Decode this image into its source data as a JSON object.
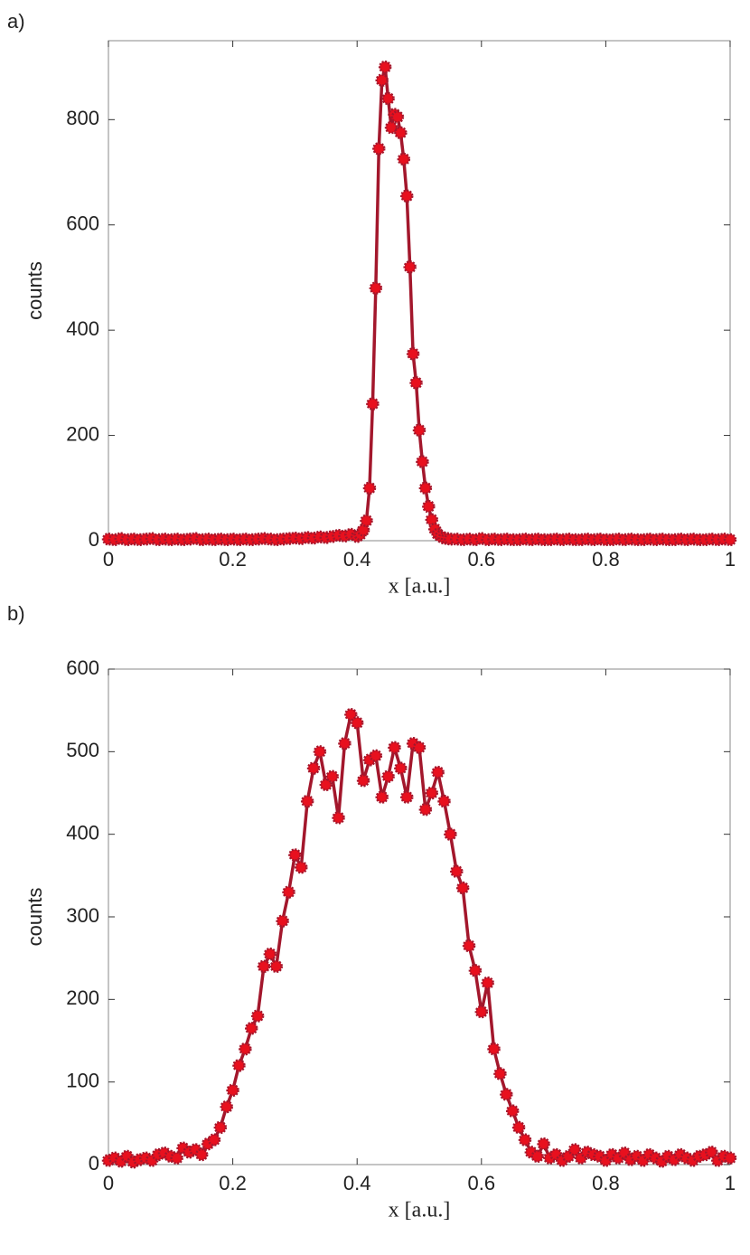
{
  "chart_data": [
    {
      "type": "line",
      "label": "a)",
      "xlabel": "x [a.u.]",
      "ylabel": "counts",
      "xlim": [
        0,
        1
      ],
      "xticks": [
        0,
        0.2,
        0.4,
        0.6,
        0.8,
        1
      ],
      "ylim": [
        0,
        950
      ],
      "yticks": [
        0,
        200,
        400,
        600,
        800
      ],
      "series": [
        {
          "color": "#a3172c",
          "marker_color": "#e8101e",
          "x": [
            0,
            0.01,
            0.02,
            0.03,
            0.04,
            0.05,
            0.06,
            0.07,
            0.08,
            0.09,
            0.1,
            0.11,
            0.12,
            0.13,
            0.14,
            0.15,
            0.16,
            0.17,
            0.18,
            0.19,
            0.2,
            0.21,
            0.22,
            0.23,
            0.24,
            0.25,
            0.26,
            0.27,
            0.28,
            0.29,
            0.3,
            0.31,
            0.32,
            0.33,
            0.34,
            0.35,
            0.36,
            0.37,
            0.38,
            0.39,
            0.4,
            0.405,
            0.41,
            0.415,
            0.42,
            0.425,
            0.43,
            0.435,
            0.44,
            0.445,
            0.45,
            0.455,
            0.46,
            0.465,
            0.47,
            0.475,
            0.48,
            0.485,
            0.49,
            0.495,
            0.5,
            0.505,
            0.51,
            0.515,
            0.52,
            0.525,
            0.53,
            0.535,
            0.54,
            0.545,
            0.55,
            0.56,
            0.57,
            0.58,
            0.59,
            0.6,
            0.61,
            0.62,
            0.63,
            0.64,
            0.65,
            0.66,
            0.67,
            0.68,
            0.69,
            0.7,
            0.71,
            0.72,
            0.73,
            0.74,
            0.75,
            0.76,
            0.77,
            0.78,
            0.79,
            0.8,
            0.81,
            0.82,
            0.83,
            0.84,
            0.85,
            0.86,
            0.87,
            0.88,
            0.89,
            0.9,
            0.91,
            0.92,
            0.93,
            0.94,
            0.95,
            0.96,
            0.97,
            0.98,
            0.99,
            1
          ],
          "values": [
            3,
            2,
            4,
            2,
            3,
            2,
            3,
            4,
            2,
            3,
            2,
            3,
            2,
            3,
            4,
            2,
            3,
            2,
            3,
            2,
            3,
            2,
            3,
            2,
            3,
            4,
            3,
            2,
            3,
            4,
            5,
            4,
            6,
            5,
            7,
            6,
            8,
            10,
            9,
            12,
            8,
            12,
            20,
            38,
            100,
            260,
            480,
            745,
            875,
            900,
            840,
            785,
            810,
            805,
            775,
            725,
            655,
            520,
            355,
            300,
            210,
            150,
            100,
            65,
            40,
            22,
            12,
            8,
            5,
            4,
            3,
            3,
            2,
            3,
            2,
            4,
            2,
            3,
            2,
            3,
            2,
            2,
            3,
            2,
            3,
            2,
            2,
            3,
            2,
            3,
            2,
            2,
            3,
            2,
            3,
            2,
            2,
            3,
            2,
            3,
            2,
            2,
            3,
            2,
            3,
            2,
            2,
            3,
            2,
            3,
            2,
            2,
            3,
            2,
            3,
            2
          ]
        }
      ]
    },
    {
      "type": "line",
      "label": "b)",
      "xlabel": "x [a.u.]",
      "ylabel": "counts",
      "xlim": [
        0,
        1
      ],
      "xticks": [
        0,
        0.2,
        0.4,
        0.6,
        0.8,
        1
      ],
      "ylim": [
        0,
        600
      ],
      "yticks": [
        0,
        100,
        200,
        300,
        400,
        500,
        600
      ],
      "series": [
        {
          "color": "#a3172c",
          "marker_color": "#e8101e",
          "x": [
            0,
            0.01,
            0.02,
            0.03,
            0.04,
            0.05,
            0.06,
            0.07,
            0.08,
            0.09,
            0.1,
            0.11,
            0.12,
            0.13,
            0.14,
            0.15,
            0.16,
            0.17,
            0.18,
            0.19,
            0.2,
            0.21,
            0.22,
            0.23,
            0.24,
            0.25,
            0.26,
            0.27,
            0.28,
            0.29,
            0.3,
            0.31,
            0.32,
            0.33,
            0.34,
            0.35,
            0.36,
            0.37,
            0.38,
            0.39,
            0.4,
            0.41,
            0.42,
            0.43,
            0.44,
            0.45,
            0.46,
            0.47,
            0.48,
            0.49,
            0.5,
            0.51,
            0.52,
            0.53,
            0.54,
            0.55,
            0.56,
            0.57,
            0.58,
            0.59,
            0.6,
            0.61,
            0.62,
            0.63,
            0.64,
            0.65,
            0.66,
            0.67,
            0.68,
            0.69,
            0.7,
            0.71,
            0.72,
            0.73,
            0.74,
            0.75,
            0.76,
            0.77,
            0.78,
            0.79,
            0.8,
            0.81,
            0.82,
            0.83,
            0.84,
            0.85,
            0.86,
            0.87,
            0.88,
            0.89,
            0.9,
            0.91,
            0.92,
            0.93,
            0.94,
            0.95,
            0.96,
            0.97,
            0.98,
            0.99,
            1
          ],
          "values": [
            5,
            8,
            4,
            10,
            3,
            6,
            8,
            5,
            12,
            14,
            10,
            8,
            20,
            15,
            18,
            12,
            25,
            30,
            45,
            70,
            90,
            120,
            140,
            165,
            180,
            240,
            255,
            240,
            295,
            330,
            375,
            360,
            440,
            480,
            500,
            460,
            470,
            420,
            510,
            545,
            535,
            465,
            490,
            495,
            445,
            470,
            505,
            480,
            445,
            510,
            505,
            430,
            450,
            475,
            440,
            400,
            355,
            335,
            265,
            235,
            185,
            220,
            140,
            110,
            85,
            65,
            45,
            30,
            15,
            10,
            25,
            8,
            12,
            5,
            10,
            18,
            8,
            15,
            12,
            10,
            5,
            12,
            8,
            14,
            6,
            10,
            5,
            12,
            8,
            4,
            10,
            6,
            12,
            8,
            5,
            10,
            12,
            15,
            5,
            10,
            8
          ]
        }
      ]
    }
  ]
}
